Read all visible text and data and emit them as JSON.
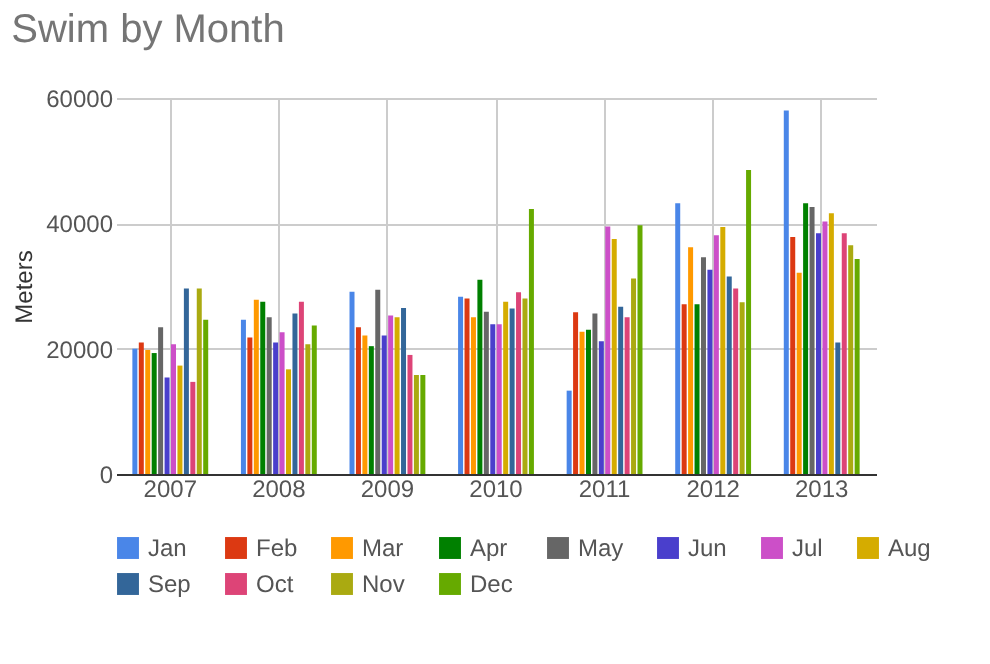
{
  "chart_data": {
    "type": "bar",
    "title": "Swim by Month",
    "ylabel": "Meters",
    "categories": [
      "2007",
      "2008",
      "2009",
      "2010",
      "2011",
      "2012",
      "2013"
    ],
    "series": [
      {
        "name": "Jan",
        "color": "#4a86e8",
        "values": [
          20000,
          24600,
          29100,
          28300,
          13300,
          43200,
          58000
        ]
      },
      {
        "name": "Feb",
        "color": "#dc3912",
        "values": [
          21000,
          21800,
          23400,
          28000,
          25800,
          27100,
          37800
        ]
      },
      {
        "name": "Mar",
        "color": "#ff9900",
        "values": [
          19800,
          27800,
          22100,
          25000,
          22700,
          36200,
          32100
        ]
      },
      {
        "name": "Apr",
        "color": "#008000",
        "values": [
          19300,
          27500,
          20400,
          31000,
          23000,
          27100,
          43200
        ]
      },
      {
        "name": "May",
        "color": "#666666",
        "values": [
          23400,
          25000,
          29400,
          25900,
          25600,
          34600,
          42600
        ]
      },
      {
        "name": "Jun",
        "color": "#4a3fcc",
        "values": [
          15400,
          21000,
          22100,
          23900,
          21200,
          32600,
          38400
        ]
      },
      {
        "name": "Jul",
        "color": "#cc4fc8",
        "values": [
          20700,
          22600,
          25300,
          23900,
          39500,
          38100,
          40300
        ]
      },
      {
        "name": "Aug",
        "color": "#d5ac00",
        "values": [
          17300,
          16700,
          25000,
          27500,
          37500,
          39400,
          41600
        ]
      },
      {
        "name": "Sep",
        "color": "#336699",
        "values": [
          29600,
          25600,
          26500,
          26400,
          26700,
          31500,
          21000
        ]
      },
      {
        "name": "Oct",
        "color": "#dd4477",
        "values": [
          14700,
          27500,
          19000,
          29000,
          25000,
          29600,
          38400
        ]
      },
      {
        "name": "Nov",
        "color": "#aaaa11",
        "values": [
          29600,
          20700,
          15800,
          28000,
          31200,
          27400,
          36500
        ]
      },
      {
        "name": "Dec",
        "color": "#66aa00",
        "values": [
          24600,
          23700,
          15800,
          42300,
          39700,
          48500,
          34300
        ]
      }
    ],
    "ylim": [
      0,
      60000
    ],
    "yticks": [
      0,
      20000,
      40000,
      60000
    ],
    "grid": true,
    "legend": "bottom"
  }
}
